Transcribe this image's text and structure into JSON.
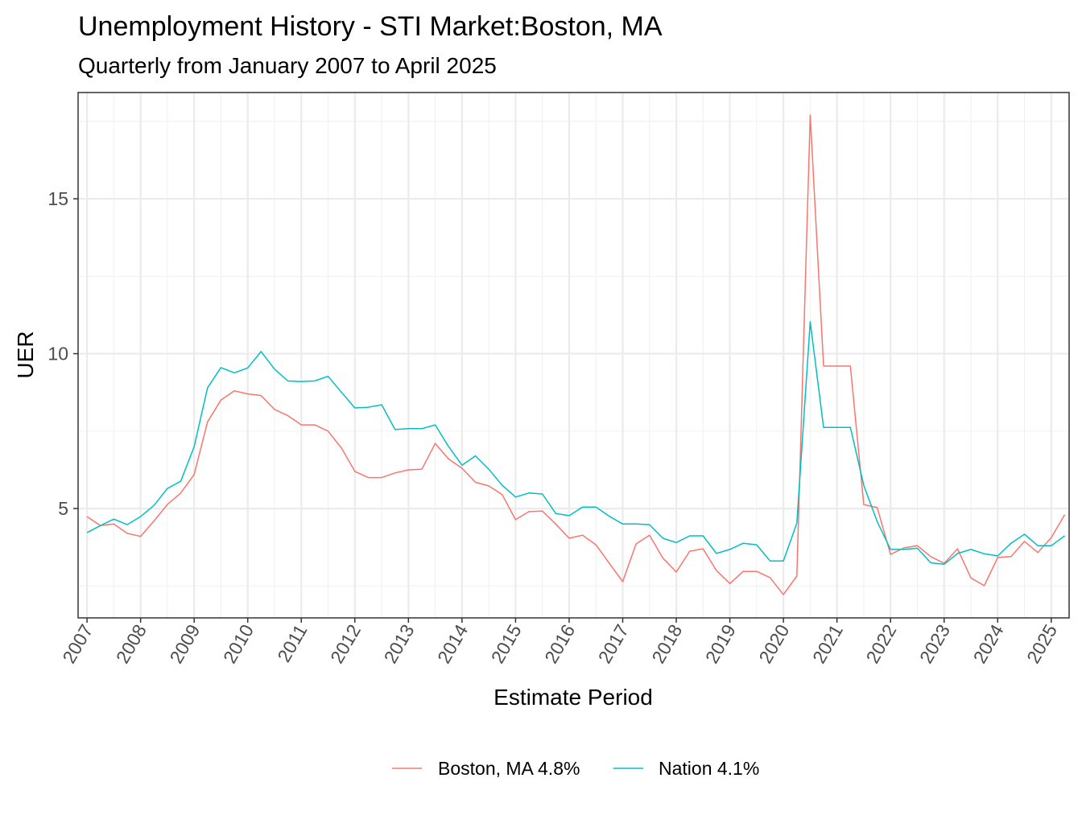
{
  "chart_data": {
    "type": "line",
    "title": "Unemployment History - STI Market:Boston, MA",
    "subtitle": "Quarterly from January 2007 to April 2025",
    "xlabel": "Estimate Period",
    "ylabel": "UER",
    "x_ticks": [
      "2007",
      "2008",
      "2009",
      "2010",
      "2011",
      "2012",
      "2013",
      "2014",
      "2015",
      "2016",
      "2017",
      "2018",
      "2019",
      "2020",
      "2021",
      "2022",
      "2023",
      "2024",
      "2025"
    ],
    "y_ticks": [
      5,
      10,
      15
    ],
    "ylim": [
      1.47,
      18.43
    ],
    "xlim": [
      "2006-11",
      "2025-05"
    ],
    "grid": true,
    "legend_position": "bottom",
    "x": [
      "2007-01",
      "2007-04",
      "2007-07",
      "2007-10",
      "2008-01",
      "2008-04",
      "2008-07",
      "2008-10",
      "2009-01",
      "2009-04",
      "2009-07",
      "2009-10",
      "2010-01",
      "2010-04",
      "2010-07",
      "2010-10",
      "2011-01",
      "2011-04",
      "2011-07",
      "2011-10",
      "2012-01",
      "2012-04",
      "2012-07",
      "2012-10",
      "2013-01",
      "2013-04",
      "2013-07",
      "2013-10",
      "2014-01",
      "2014-04",
      "2014-07",
      "2014-10",
      "2015-01",
      "2015-04",
      "2015-07",
      "2015-10",
      "2016-01",
      "2016-04",
      "2016-07",
      "2016-10",
      "2017-01",
      "2017-04",
      "2017-07",
      "2017-10",
      "2018-01",
      "2018-04",
      "2018-07",
      "2018-10",
      "2019-01",
      "2019-04",
      "2019-07",
      "2019-10",
      "2020-01",
      "2020-04",
      "2020-07",
      "2020-10",
      "2021-01",
      "2021-04",
      "2021-07",
      "2021-10",
      "2022-01",
      "2022-04",
      "2022-07",
      "2022-10",
      "2023-01",
      "2023-04",
      "2023-07",
      "2023-10",
      "2024-01",
      "2024-04",
      "2024-07",
      "2024-10",
      "2025-01",
      "2025-04"
    ],
    "series": [
      {
        "name": "Boston, MA 4.8%",
        "color": "#F8766D",
        "values": [
          4.74,
          4.45,
          4.5,
          4.2,
          4.1,
          4.6,
          5.13,
          5.5,
          6.1,
          7.8,
          8.5,
          8.8,
          8.7,
          8.65,
          8.2,
          8.0,
          7.7,
          7.7,
          7.5,
          6.95,
          6.2,
          6.0,
          6.0,
          6.15,
          6.25,
          6.27,
          7.1,
          6.6,
          6.3,
          5.85,
          5.73,
          5.45,
          4.64,
          4.9,
          4.92,
          4.5,
          4.04,
          4.14,
          3.83,
          3.23,
          2.64,
          3.86,
          4.14,
          3.4,
          2.95,
          3.62,
          3.7,
          3.0,
          2.58,
          2.97,
          2.97,
          2.77,
          2.22,
          2.82,
          17.7,
          9.6,
          9.6,
          9.6,
          5.13,
          5.03,
          3.52,
          3.73,
          3.8,
          3.45,
          3.23,
          3.7,
          2.76,
          2.51,
          3.42,
          3.45,
          3.94,
          3.58,
          4.06,
          4.8
        ]
      },
      {
        "name": "Nation 4.1%",
        "color": "#00BFC4",
        "values": [
          4.22,
          4.45,
          4.66,
          4.48,
          4.74,
          5.1,
          5.65,
          5.88,
          7.0,
          8.9,
          9.55,
          9.38,
          9.54,
          10.07,
          9.5,
          9.12,
          9.1,
          9.12,
          9.27,
          8.75,
          8.25,
          8.27,
          8.35,
          7.55,
          7.58,
          7.58,
          7.7,
          7.0,
          6.4,
          6.7,
          6.27,
          5.75,
          5.37,
          5.5,
          5.47,
          4.84,
          4.77,
          5.05,
          5.05,
          4.75,
          4.5,
          4.5,
          4.48,
          4.04,
          3.9,
          4.12,
          4.12,
          3.55,
          3.68,
          3.88,
          3.83,
          3.31,
          3.31,
          4.53,
          11.03,
          7.62,
          7.62,
          7.62,
          5.75,
          4.58,
          3.68,
          3.68,
          3.72,
          3.25,
          3.2,
          3.55,
          3.68,
          3.54,
          3.47,
          3.88,
          4.17,
          3.8,
          3.8,
          4.12
        ]
      }
    ]
  }
}
